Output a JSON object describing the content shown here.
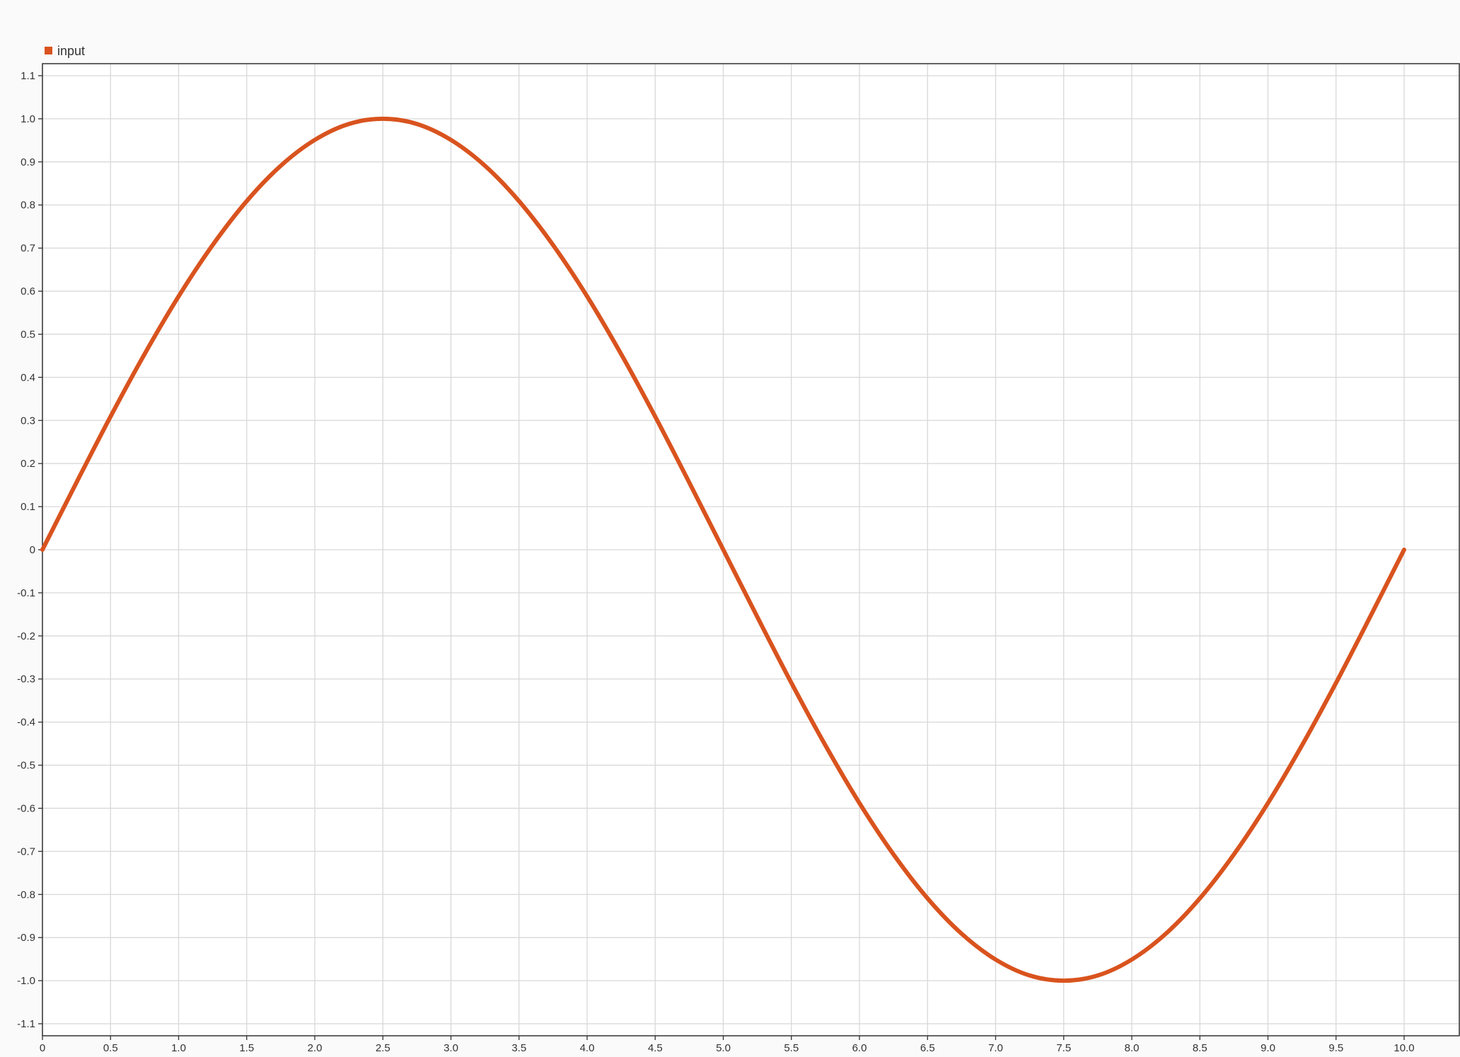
{
  "colors": {
    "series": "#d9531e",
    "grid": "#d8d8d8",
    "axis": "#333333",
    "background": "#fafafa",
    "plot_background": "#ffffff"
  },
  "chart_data": {
    "type": "line",
    "title": "",
    "xlabel": "",
    "ylabel": "",
    "xlim": [
      0,
      10.4
    ],
    "ylim": [
      -1.125,
      1.125
    ],
    "grid": true,
    "legend_position": "top-left",
    "x_ticks": [
      {
        "value": 0,
        "label": "0"
      },
      {
        "value": 0.5,
        "label": "0.5"
      },
      {
        "value": 1.0,
        "label": "1.0"
      },
      {
        "value": 1.5,
        "label": "1.5"
      },
      {
        "value": 2.0,
        "label": "2.0"
      },
      {
        "value": 2.5,
        "label": "2.5"
      },
      {
        "value": 3.0,
        "label": "3.0"
      },
      {
        "value": 3.5,
        "label": "3.5"
      },
      {
        "value": 4.0,
        "label": "4.0"
      },
      {
        "value": 4.5,
        "label": "4.5"
      },
      {
        "value": 5.0,
        "label": "5.0"
      },
      {
        "value": 5.5,
        "label": "5.5"
      },
      {
        "value": 6.0,
        "label": "6.0"
      },
      {
        "value": 6.5,
        "label": "6.5"
      },
      {
        "value": 7.0,
        "label": "7.0"
      },
      {
        "value": 7.5,
        "label": "7.5"
      },
      {
        "value": 8.0,
        "label": "8.0"
      },
      {
        "value": 8.5,
        "label": "8.5"
      },
      {
        "value": 9.0,
        "label": "9.0"
      },
      {
        "value": 9.5,
        "label": "9.5"
      },
      {
        "value": 10.0,
        "label": "10.0"
      }
    ],
    "y_ticks": [
      {
        "value": 1.1,
        "label": "1.1"
      },
      {
        "value": 1.0,
        "label": "1.0"
      },
      {
        "value": 0.9,
        "label": "0.9"
      },
      {
        "value": 0.8,
        "label": "0.8"
      },
      {
        "value": 0.7,
        "label": "0.7"
      },
      {
        "value": 0.6,
        "label": "0.6"
      },
      {
        "value": 0.5,
        "label": "0.5"
      },
      {
        "value": 0.4,
        "label": "0.4"
      },
      {
        "value": 0.3,
        "label": "0.3"
      },
      {
        "value": 0.2,
        "label": "0.2"
      },
      {
        "value": 0.1,
        "label": "0.1"
      },
      {
        "value": 0,
        "label": "0"
      },
      {
        "value": -0.1,
        "label": "-0.1"
      },
      {
        "value": -0.2,
        "label": "-0.2"
      },
      {
        "value": -0.3,
        "label": "-0.3"
      },
      {
        "value": -0.4,
        "label": "-0.4"
      },
      {
        "value": -0.5,
        "label": "-0.5"
      },
      {
        "value": -0.6,
        "label": "-0.6"
      },
      {
        "value": -0.7,
        "label": "-0.7"
      },
      {
        "value": -0.8,
        "label": "-0.8"
      },
      {
        "value": -0.9,
        "label": "-0.9"
      },
      {
        "value": -1.0,
        "label": "-1.0"
      },
      {
        "value": -1.1,
        "label": "-1.1"
      }
    ],
    "series": [
      {
        "name": "input",
        "x": [
          0,
          0.25,
          0.5,
          0.75,
          1.0,
          1.25,
          1.5,
          1.75,
          2.0,
          2.25,
          2.5,
          2.75,
          3.0,
          3.25,
          3.5,
          3.75,
          4.0,
          4.25,
          4.5,
          4.75,
          5.0,
          5.25,
          5.5,
          5.75,
          6.0,
          6.25,
          6.5,
          6.75,
          7.0,
          7.25,
          7.5,
          7.75,
          8.0,
          8.25,
          8.5,
          8.75,
          9.0,
          9.25,
          9.5,
          9.75,
          10.0
        ],
        "values": [
          0,
          0.156,
          0.309,
          0.454,
          0.588,
          0.707,
          0.809,
          0.891,
          0.951,
          0.988,
          1.0,
          0.988,
          0.951,
          0.891,
          0.809,
          0.707,
          0.588,
          0.454,
          0.309,
          0.156,
          0,
          -0.156,
          -0.309,
          -0.454,
          -0.588,
          -0.707,
          -0.809,
          -0.891,
          -0.951,
          -0.988,
          -1.0,
          -0.988,
          -0.951,
          -0.891,
          -0.809,
          -0.707,
          -0.588,
          -0.454,
          -0.309,
          -0.156,
          0
        ]
      }
    ]
  }
}
